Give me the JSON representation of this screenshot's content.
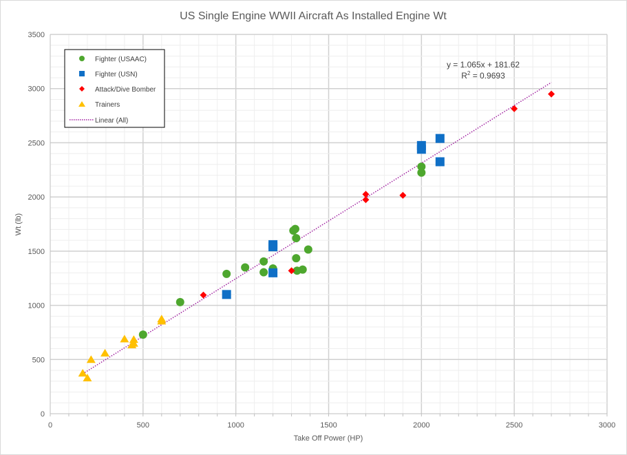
{
  "chart_data": {
    "type": "scatter",
    "title": "US Single Engine WWII Aircraft As Installed Engine Wt",
    "xlabel": "Take Off Power (HP)",
    "ylabel": "Wt (lb)",
    "xlim": [
      0,
      3000
    ],
    "ylim": [
      0,
      3500
    ],
    "x_ticks": [
      "0",
      "500",
      "1000",
      "1500",
      "2000",
      "2500",
      "3000"
    ],
    "y_ticks": [
      "0",
      "500",
      "1000",
      "1500",
      "2000",
      "2500",
      "3000",
      "3500"
    ],
    "grid": true,
    "legend_position": "top-left",
    "series": [
      {
        "name": "Fighter (USAAC)",
        "marker": "circle",
        "color": "#4ea72e",
        "points": [
          [
            500,
            730
          ],
          [
            700,
            1030
          ],
          [
            950,
            1290
          ],
          [
            1050,
            1350
          ],
          [
            1150,
            1405
          ],
          [
            1150,
            1305
          ],
          [
            1200,
            1340
          ],
          [
            1310,
            1690
          ],
          [
            1320,
            1705
          ],
          [
            1325,
            1620
          ],
          [
            1325,
            1435
          ],
          [
            1330,
            1320
          ],
          [
            1360,
            1330
          ],
          [
            1390,
            1515
          ],
          [
            2000,
            2280
          ],
          [
            2000,
            2225
          ]
        ]
      },
      {
        "name": "Fighter (USN)",
        "marker": "square",
        "color": "#0f6fc6",
        "points": [
          [
            950,
            1100
          ],
          [
            1200,
            1560
          ],
          [
            1200,
            1540
          ],
          [
            1200,
            1300
          ],
          [
            2000,
            2475
          ],
          [
            2000,
            2440
          ],
          [
            2100,
            2540
          ],
          [
            2100,
            2325
          ]
        ]
      },
      {
        "name": "Attack/Dive Bomber",
        "marker": "diamond",
        "color": "#ff0000",
        "points": [
          [
            825,
            1095
          ],
          [
            1300,
            1320
          ],
          [
            1700,
            2025
          ],
          [
            1700,
            1975
          ],
          [
            1900,
            2015
          ],
          [
            2500,
            2815
          ],
          [
            2700,
            2950
          ]
        ]
      },
      {
        "name": "Trainers",
        "marker": "triangle",
        "color": "#ffc000",
        "points": [
          [
            175,
            375
          ],
          [
            200,
            330
          ],
          [
            220,
            500
          ],
          [
            295,
            560
          ],
          [
            400,
            690
          ],
          [
            440,
            635
          ],
          [
            450,
            685
          ],
          [
            450,
            650
          ],
          [
            600,
            875
          ],
          [
            600,
            855
          ]
        ]
      }
    ],
    "trendline": {
      "name": "Linear (All)",
      "color": "#a020a0",
      "style": "dotted",
      "slope": 1.065,
      "intercept": 181.62,
      "x_range": [
        175,
        2700
      ],
      "equation": "y = 1.065x + 181.62",
      "r2_label": "R",
      "r2_sup": "2",
      "r2_value": " = 0.9693"
    }
  }
}
